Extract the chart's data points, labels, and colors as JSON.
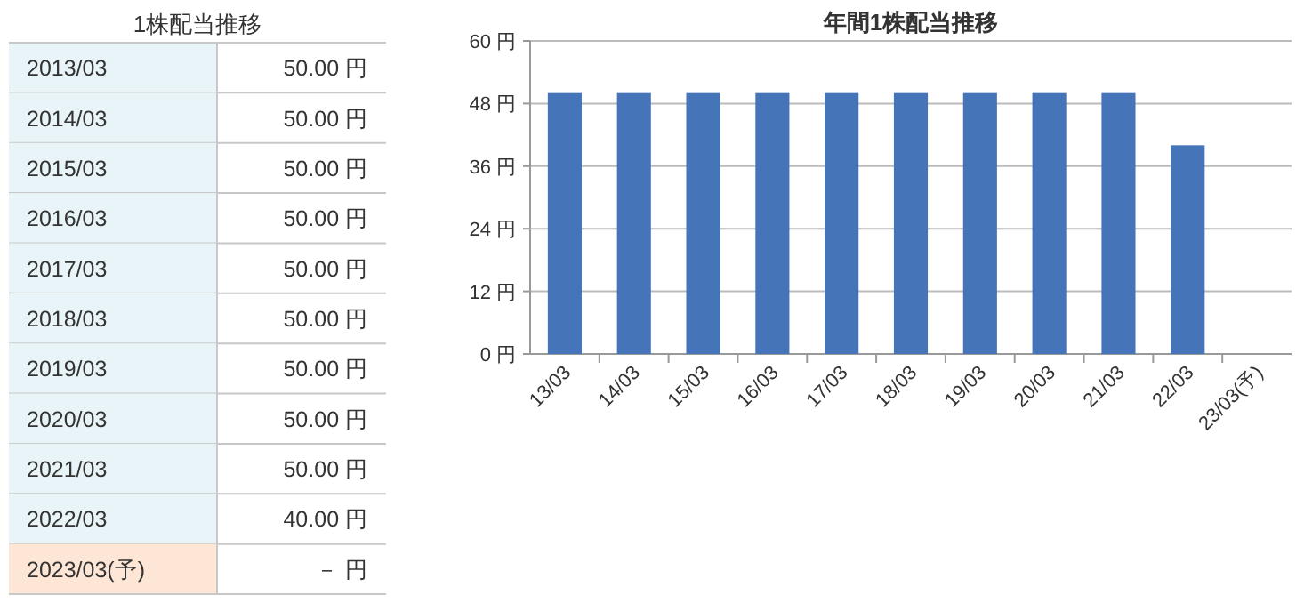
{
  "chart_data": [
    {
      "type": "other",
      "title": "1株配当推移",
      "categories": [
        "2013/03",
        "2014/03",
        "2015/03",
        "2016/03",
        "2017/03",
        "2018/03",
        "2019/03",
        "2020/03",
        "2021/03",
        "2022/03",
        "2023/03(予)"
      ],
      "value_labels": [
        "50.00 円",
        "50.00 円",
        "50.00 円",
        "50.00 円",
        "50.00 円",
        "50.00 円",
        "50.00 円",
        "50.00 円",
        "50.00 円",
        "40.00 円",
        "－ 円"
      ],
      "colors": [
        "#e8f4f8",
        "#e8f4f8",
        "#e8f4f8",
        "#e8f4f8",
        "#e8f4f8",
        "#e8f4f8",
        "#e8f4f8",
        "#e8f4f8",
        "#e8f4f8",
        "#e8f4f8",
        "#fde6d6"
      ]
    },
    {
      "type": "bar",
      "title": "年間1株配当推移",
      "categories": [
        "13/03",
        "14/03",
        "15/03",
        "16/03",
        "17/03",
        "18/03",
        "19/03",
        "20/03",
        "21/03",
        "22/03",
        "23/03(予)"
      ],
      "values": [
        50,
        50,
        50,
        50,
        50,
        50,
        50,
        50,
        50,
        40,
        null
      ],
      "color": "#4674b8",
      "ylim": [
        0,
        60
      ],
      "yticks": [
        {
          "value": 0,
          "label": "0 円"
        },
        {
          "value": 12,
          "label": "12 円"
        },
        {
          "value": 24,
          "label": "24 円"
        },
        {
          "value": 36,
          "label": "36 円"
        },
        {
          "value": 48,
          "label": "48 円"
        },
        {
          "value": 60,
          "label": "60 円"
        }
      ],
      "grid": "y"
    }
  ]
}
